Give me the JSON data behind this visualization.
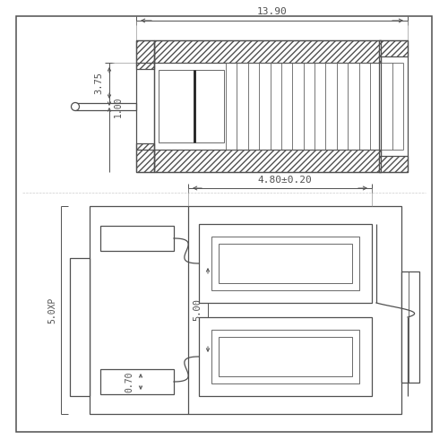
{
  "bg_color": "#ffffff",
  "line_color": "#505050",
  "border_color": "#505050",
  "dim_13_90": "13.90",
  "dim_3_75": "3.75",
  "dim_1_00": "1.00",
  "dim_4_80": "4.80±0.20",
  "dim_5_00": "5.00",
  "dim_0_70": "0.70",
  "dim_5_0xp": "5.0XP"
}
